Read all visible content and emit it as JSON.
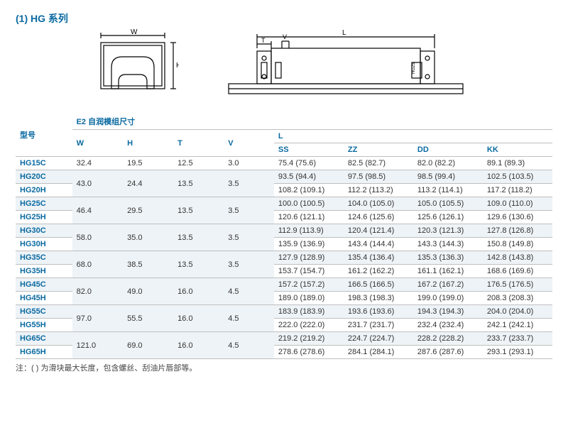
{
  "title": "(1) HG 系列",
  "diagram_labels": {
    "W": "W",
    "H": "H",
    "L": "L",
    "T": "T",
    "V": "V"
  },
  "headers": {
    "model": "型号",
    "group": "E2 自润模组尺寸",
    "W": "W",
    "H": "H",
    "T": "T",
    "V": "V",
    "L": "L",
    "SS": "SS",
    "ZZ": "ZZ",
    "DD": "DD",
    "KK": "KK"
  },
  "rows": [
    {
      "model": "HG15C",
      "W": "32.4",
      "H": "19.5",
      "T": "12.5",
      "V": "3.0",
      "SS": "75.4 (75.6)",
      "ZZ": "82.5 (82.7)",
      "DD": "82.0 (82.2)",
      "KK": "89.1 (89.3)"
    },
    {
      "model": "HG20C",
      "W": "43.0",
      "H": "24.4",
      "T": "13.5",
      "V": "3.5",
      "SS": "93.5 (94.4)",
      "ZZ": "97.5 (98.5)",
      "DD": "98.5 (99.4)",
      "KK": "102.5 (103.5)"
    },
    {
      "model": "HG20H",
      "SS": "108.2 (109.1)",
      "ZZ": "112.2 (113.2)",
      "DD": "113.2 (114.1)",
      "KK": "117.2 (118.2)"
    },
    {
      "model": "HG25C",
      "W": "46.4",
      "H": "29.5",
      "T": "13.5",
      "V": "3.5",
      "SS": "100.0 (100.5)",
      "ZZ": "104.0 (105.0)",
      "DD": "105.0 (105.5)",
      "KK": "109.0 (110.0)"
    },
    {
      "model": "HG25H",
      "SS": "120.6 (121.1)",
      "ZZ": "124.6 (125.6)",
      "DD": "125.6 (126.1)",
      "KK": "129.6 (130.6)"
    },
    {
      "model": "HG30C",
      "W": "58.0",
      "H": "35.0",
      "T": "13.5",
      "V": "3.5",
      "SS": "112.9 (113.9)",
      "ZZ": "120.4 (121.4)",
      "DD": "120.3 (121.3)",
      "KK": "127.8 (126.8)"
    },
    {
      "model": "HG30H",
      "SS": "135.9 (136.9)",
      "ZZ": "143.4 (144.4)",
      "DD": "143.3 (144.3)",
      "KK": "150.8 (149.8)"
    },
    {
      "model": "HG35C",
      "W": "68.0",
      "H": "38.5",
      "T": "13.5",
      "V": "3.5",
      "SS": "127.9 (128.9)",
      "ZZ": "135.4 (136.4)",
      "DD": "135.3 (136.3)",
      "KK": "142.8 (143.8)"
    },
    {
      "model": "HG35H",
      "SS": "153.7 (154.7)",
      "ZZ": "161.2 (162.2)",
      "DD": "161.1 (162.1)",
      "KK": "168.6 (169.6)"
    },
    {
      "model": "HG45C",
      "W": "82.0",
      "H": "49.0",
      "T": "16.0",
      "V": "4.5",
      "SS": "157.2 (157.2)",
      "ZZ": "166.5 (166.5)",
      "DD": "167.2 (167.2)",
      "KK": "176.5 (176.5)"
    },
    {
      "model": "HG45H",
      "SS": "189.0 (189.0)",
      "ZZ": "198.3 (198.3)",
      "DD": "199.0 (199.0)",
      "KK": "208.3 (208.3)"
    },
    {
      "model": "HG55C",
      "W": "97.0",
      "H": "55.5",
      "T": "16.0",
      "V": "4.5",
      "SS": "183.9 (183.9)",
      "ZZ": "193.6 (193.6)",
      "DD": "194.3 (194.3)",
      "KK": "204.0 (204.0)"
    },
    {
      "model": "HG55H",
      "SS": "222.0 (222.0)",
      "ZZ": "231.7 (231.7)",
      "DD": "232.4 (232.4)",
      "KK": "242.1 (242.1)"
    },
    {
      "model": "HG65C",
      "W": "121.0",
      "H": "69.0",
      "T": "16.0",
      "V": "4.5",
      "SS": "219.2 (219.2)",
      "ZZ": "224.7 (224.7)",
      "DD": "228.2 (228.2)",
      "KK": "233.7 (233.7)"
    },
    {
      "model": "HG65H",
      "SS": "278.6 (278.6)",
      "ZZ": "284.1 (284.1)",
      "DD": "287.6 (287.6)",
      "KK": "293.1 (293.1)"
    }
  ],
  "footnote": "注：( ) 为滑块最大长度，包含螺丝、刮油片唇部等。",
  "colors": {
    "accent": "#0a6aa1",
    "row_alt": "#eef3f7",
    "border": "#bfbfbf"
  }
}
